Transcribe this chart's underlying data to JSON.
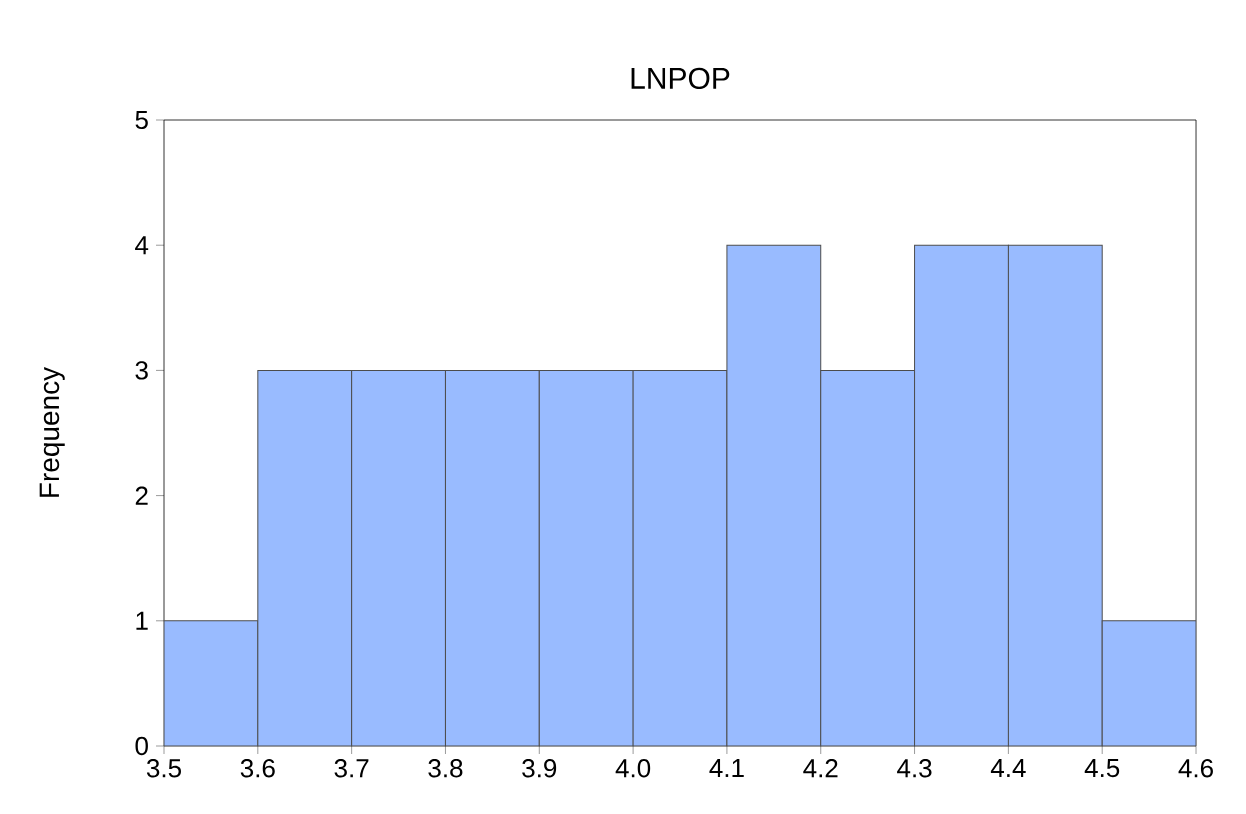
{
  "chart_data": {
    "type": "histogram",
    "title": "LNPOP",
    "ylabel": "Frequency",
    "bins": [
      3.5,
      3.6,
      3.7,
      3.8,
      3.9,
      4.0,
      4.1,
      4.2,
      4.3,
      4.4,
      4.5,
      4.6
    ],
    "values": [
      1,
      3,
      3,
      3,
      3,
      3,
      4,
      3,
      4,
      4,
      1
    ],
    "color": "#99bbff",
    "xlim": [
      3.5,
      4.6
    ],
    "ylim": [
      0,
      5
    ],
    "xticks": [
      3.5,
      3.6,
      3.7,
      3.8,
      3.9,
      {
        "value": 4,
        "label": "4.0"
      },
      4.1,
      4.2,
      4.3,
      4.4,
      4.5,
      4.6
    ],
    "yticks": [
      0,
      1,
      2,
      3,
      4,
      5
    ],
    "marker": "none"
  }
}
